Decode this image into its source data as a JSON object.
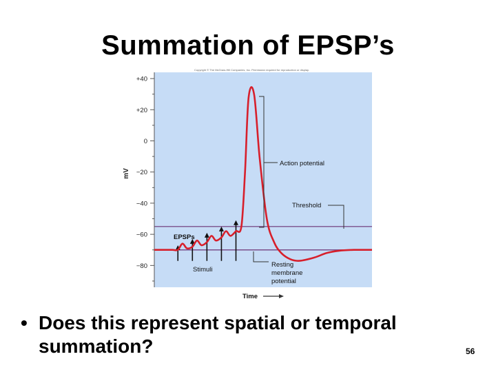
{
  "slide": {
    "title": "Summation of EPSP’s",
    "bullet": "Does this represent spatial or temporal summation?",
    "page_number": "56"
  },
  "figure": {
    "copyright": "Copyright © The McGraw-Hill Companies, Inc. Permission required for reproduction or display.",
    "colors": {
      "panel": "#c6dcf6",
      "trace": "#d71f2b",
      "reference_lines": "#7a4e8a",
      "axis": "#555555"
    }
  },
  "chart_data": {
    "type": "line",
    "ylabel": "mV",
    "xlabel": "Time",
    "ylim": [
      -94,
      44
    ],
    "y_ticks": [
      40,
      20,
      0,
      -20,
      -40,
      -60,
      -80
    ],
    "y_tick_labels": [
      "+40",
      "+20",
      "0",
      "−20",
      "−40",
      "−60",
      "−80"
    ],
    "threshold_mv": -55,
    "resting_mv": -70,
    "series": [
      {
        "x": [
          0,
          5,
          10,
          13,
          15.5,
          18,
          21,
          23.5,
          26,
          29,
          31.5,
          34,
          37,
          39.5,
          42,
          45,
          48,
          50,
          52,
          55,
          58,
          62,
          66,
          70,
          75,
          80,
          88,
          95,
          102,
          110,
          120
        ],
        "y": [
          -70,
          -70,
          -70,
          -70,
          -66,
          -69,
          -68,
          -64,
          -67,
          -65,
          -61,
          -64,
          -62,
          -58,
          -61,
          -58,
          -55,
          -20,
          28,
          30,
          -10,
          -50,
          -65,
          -72,
          -76,
          -77,
          -75,
          -72,
          -70.5,
          -70,
          -70
        ]
      }
    ],
    "stimuli_x": [
      13,
      21,
      29,
      37,
      45
    ],
    "annotations": {
      "epsps": "EPSPs",
      "stimuli": "Stimuli",
      "action_potential": "Action potential",
      "threshold": "Threshold",
      "resting": [
        "Resting",
        "membrane",
        "potential"
      ]
    }
  }
}
